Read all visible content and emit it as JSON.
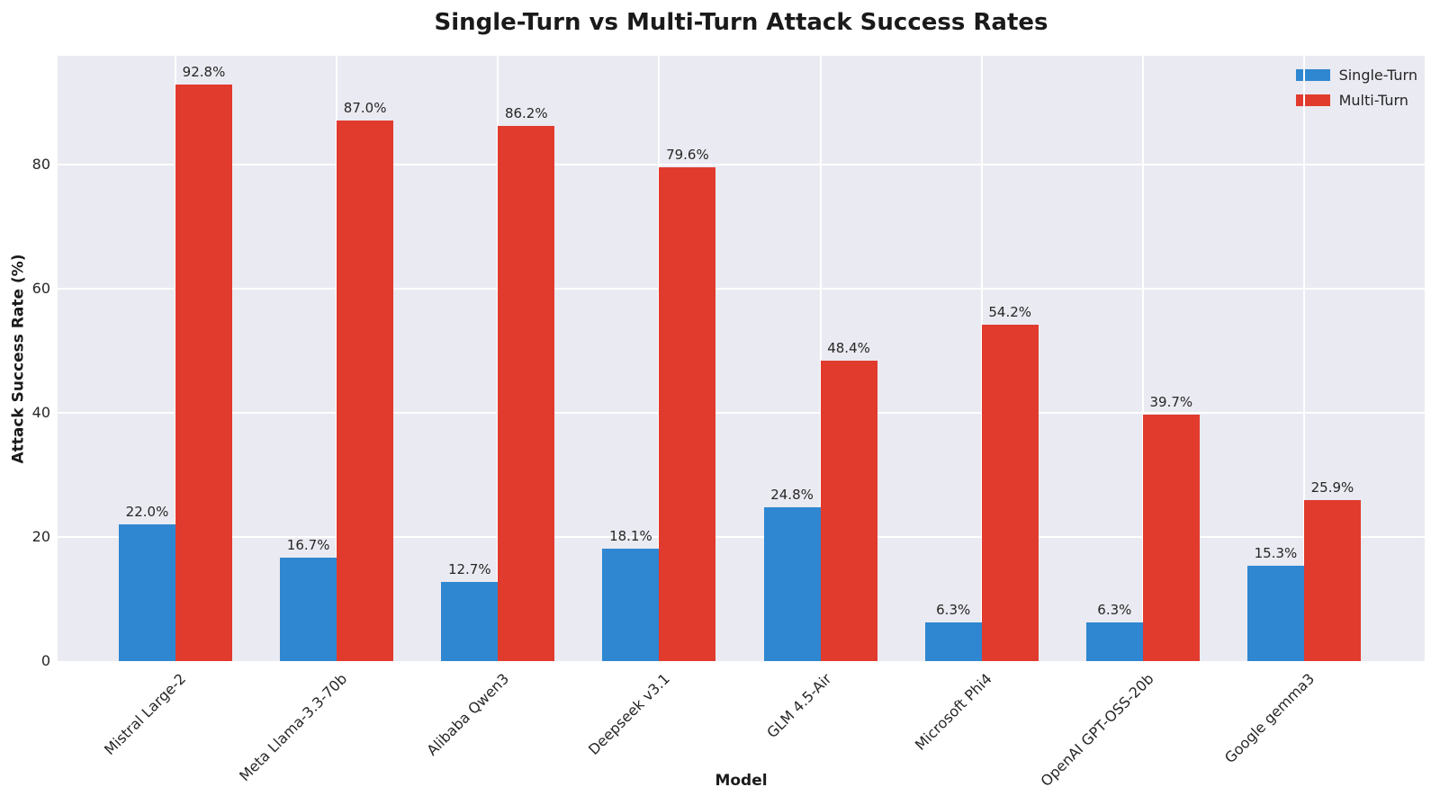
{
  "chart_data": {
    "type": "bar",
    "title": "Single-Turn vs Multi-Turn Attack Success Rates",
    "xlabel": "Model",
    "ylabel": "Attack Success Rate (%)",
    "categories": [
      "Mistral Large-2",
      "Meta Llama-3.3-70b",
      "Alibaba Qwen3",
      "Deepseek v3.1",
      "GLM 4.5-Air",
      "Microsoft Phi4",
      "OpenAI GPT-OSS-20b",
      "Google gemma3"
    ],
    "series": [
      {
        "name": "Single-Turn",
        "color": "#2f87d1",
        "values": [
          22.0,
          16.7,
          12.7,
          18.1,
          24.8,
          6.3,
          6.3,
          15.3
        ],
        "labels": [
          "22.0%",
          "16.7%",
          "12.7%",
          "18.1%",
          "24.8%",
          "6.3%",
          "6.3%",
          "15.3%"
        ]
      },
      {
        "name": "Multi-Turn",
        "color": "#e13b2e",
        "values": [
          92.8,
          87.0,
          86.2,
          79.6,
          48.4,
          54.2,
          39.7,
          25.9
        ],
        "labels": [
          "92.8%",
          "87.0%",
          "86.2%",
          "79.6%",
          "48.4%",
          "54.2%",
          "39.7%",
          "25.9%"
        ]
      }
    ],
    "yticks": [
      0,
      20,
      40,
      60,
      80
    ],
    "ytick_labels": [
      "0",
      "20",
      "40",
      "60",
      "80"
    ],
    "ylim": [
      0,
      97.5
    ],
    "grid": true,
    "plot_background": "#eaeaf2",
    "gridline_color": "#ffffff",
    "legend_position": "upper right"
  }
}
